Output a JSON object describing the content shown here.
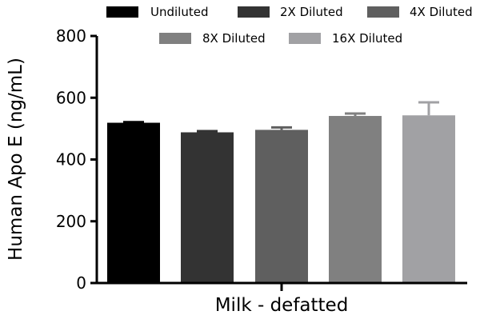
{
  "chart_data": {
    "type": "bar",
    "xlabel": "Milk - defatted",
    "ylabel": "Human Apo E (ng/mL)",
    "ylim": [
      0,
      800
    ],
    "yticks": [
      0,
      200,
      400,
      600,
      800
    ],
    "legend_position": "top",
    "series": [
      {
        "name": "Undiluted",
        "value": 519,
        "error": 2,
        "color": "#000000"
      },
      {
        "name": "2X Diluted",
        "value": 488,
        "error": 4,
        "color": "#333333"
      },
      {
        "name": "4X Diluted",
        "value": 496,
        "error": 8,
        "color": "#5f5f5f"
      },
      {
        "name": "8X Diluted",
        "value": 541,
        "error": 8,
        "color": "#808080"
      },
      {
        "name": "16X Diluted",
        "value": 543,
        "error": 42,
        "color": "#a1a1a4"
      }
    ]
  }
}
